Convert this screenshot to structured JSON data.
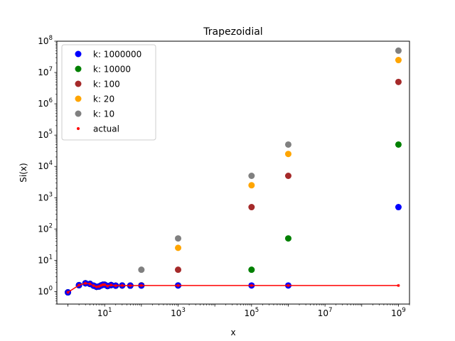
{
  "chart_data": {
    "type": "scatter",
    "title": "Trapezoidial",
    "xlabel": "x",
    "ylabel": "Si(x)",
    "xscale": "log",
    "yscale": "log",
    "xlim": [
      0.5,
      2000000000
    ],
    "ylim": [
      0.4,
      100000000
    ],
    "legend_position": "top-left",
    "xticks": [
      {
        "value": 10,
        "base": "10",
        "exp": "1"
      },
      {
        "value": 1000,
        "base": "10",
        "exp": "3"
      },
      {
        "value": 100000,
        "base": "10",
        "exp": "5"
      },
      {
        "value": 10000000,
        "base": "10",
        "exp": "7"
      },
      {
        "value": 1000000000,
        "base": "10",
        "exp": "9"
      }
    ],
    "yticks": [
      {
        "value": 1,
        "base": "10",
        "exp": "0"
      },
      {
        "value": 10,
        "base": "10",
        "exp": "1"
      },
      {
        "value": 100,
        "base": "10",
        "exp": "2"
      },
      {
        "value": 1000,
        "base": "10",
        "exp": "3"
      },
      {
        "value": 10000,
        "base": "10",
        "exp": "4"
      },
      {
        "value": 100000,
        "base": "10",
        "exp": "5"
      },
      {
        "value": 1000000,
        "base": "10",
        "exp": "6"
      },
      {
        "value": 10000000,
        "base": "10",
        "exp": "7"
      },
      {
        "value": 100000000,
        "base": "10",
        "exp": "8"
      }
    ],
    "base_x": [
      1,
      2,
      3,
      4,
      5,
      6,
      7,
      8,
      9,
      10,
      12,
      15,
      20,
      30,
      50
    ],
    "base_y": [
      0.946,
      1.605,
      1.849,
      1.758,
      1.55,
      1.425,
      1.455,
      1.574,
      1.665,
      1.658,
      1.505,
      1.618,
      1.548,
      1.567,
      1.552
    ],
    "series": [
      {
        "name": "k: 1000000",
        "color": "#0000ff",
        "x": [
          100,
          1000,
          100000,
          1000000,
          1000000000
        ],
        "y": [
          1.5622,
          1.5703,
          1.5708,
          1.57,
          500
        ]
      },
      {
        "name": "k: 10000",
        "color": "#008000",
        "x": [
          100,
          1000,
          100000,
          1000000,
          1000000000
        ],
        "y": [
          1.562,
          1.575,
          5,
          50,
          50000
        ]
      },
      {
        "name": "k: 100",
        "color": "#a52a2a",
        "x": [
          100,
          1000,
          100000,
          1000000,
          1000000000
        ],
        "y": [
          1.57,
          5,
          500,
          5000,
          5000000
        ]
      },
      {
        "name": "k: 20",
        "color": "#ffa500",
        "x": [
          100,
          1000,
          100000,
          1000000,
          1000000000
        ],
        "y": [
          1.6,
          25,
          2500,
          25000,
          25000000
        ]
      },
      {
        "name": "k: 10",
        "color": "#808080",
        "x": [
          100,
          1000,
          100000,
          1000000,
          1000000000
        ],
        "y": [
          5,
          50,
          5000,
          50000,
          50000000
        ]
      }
    ],
    "actual": {
      "name": "actual",
      "color": "#ff0000",
      "x": [
        100,
        1000,
        100000,
        1000000,
        1000000000
      ],
      "y": [
        1.5622,
        1.5702,
        1.5708,
        1.5708,
        1.5708
      ]
    }
  }
}
